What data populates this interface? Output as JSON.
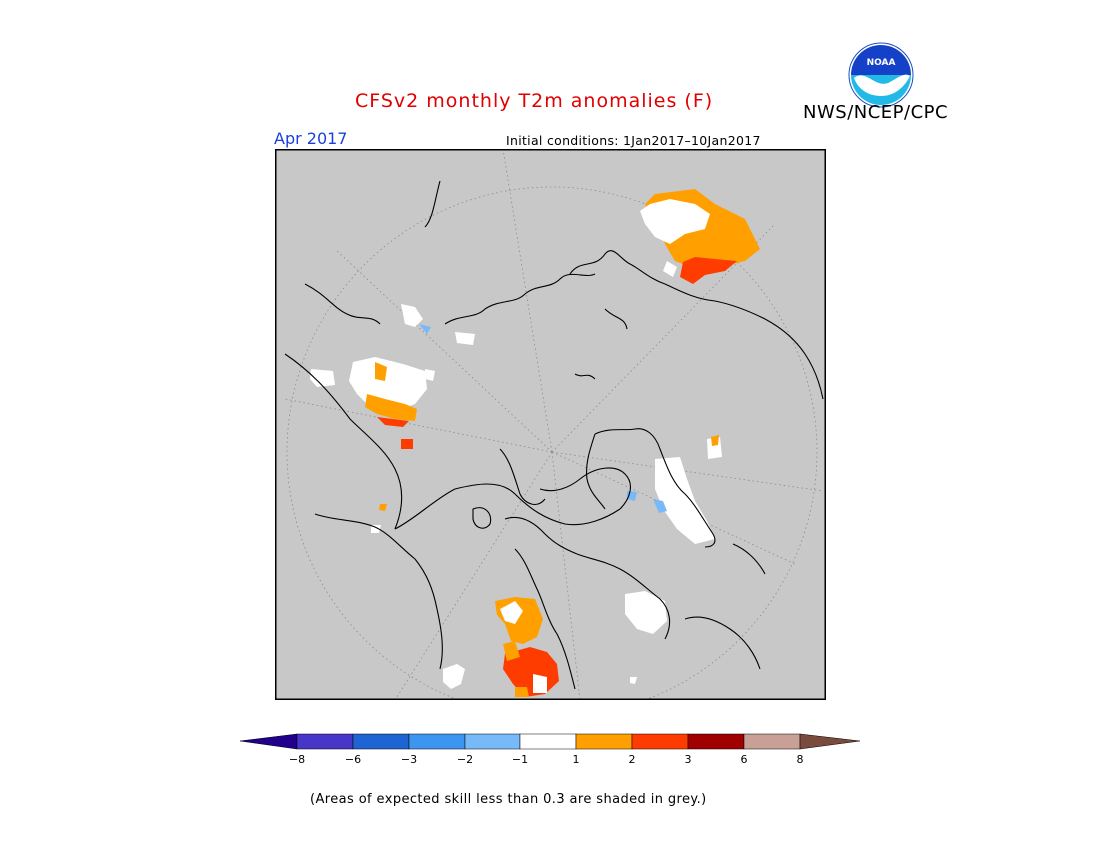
{
  "header": {
    "title": "CFSv2 monthly T2m anomalies (F)",
    "organization": "NWS/NCEP/CPC",
    "logo_text": "NOAA",
    "month": "Apr 2017",
    "initial_conditions": "Initial conditions: 1Jan2017–10Jan2017"
  },
  "map": {
    "projection": "north polar stereographic",
    "background_color": "#c8c8c8"
  },
  "colorbar": {
    "ticks": [
      "−8",
      "−6",
      "−3",
      "−2",
      "−1",
      "1",
      "2",
      "3",
      "6",
      "8"
    ],
    "colors": [
      "#20008c",
      "#4836c8",
      "#1e64d2",
      "#3c96f0",
      "#78b9fa",
      "#ffffff",
      "#ffa000",
      "#ff3c00",
      "#a00000",
      "#c8a096",
      "#784b3c"
    ]
  },
  "footnote": "(Areas of expected skill less than 0.3 are shaded in grey.)"
}
